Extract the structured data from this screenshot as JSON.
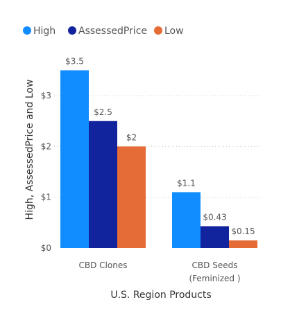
{
  "chart_data": {
    "type": "bar",
    "title": "",
    "xlabel": "U.S. Region Products",
    "ylabel": "High, AssessedPrice and Low",
    "categories": [
      [
        "CBD Clones"
      ],
      [
        "CBD Seeds",
        "(Feminized )"
      ]
    ],
    "series": [
      {
        "name": "High",
        "color": "#118DFF",
        "values": [
          3.5,
          1.1
        ],
        "labels": [
          "$3.5",
          "$1.1"
        ]
      },
      {
        "name": "AssessedPrice",
        "color": "#12239E",
        "values": [
          2.5,
          0.43
        ],
        "labels": [
          "$2.5",
          "$0.43"
        ]
      },
      {
        "name": "Low",
        "color": "#E66C37",
        "values": [
          2,
          0.15
        ],
        "labels": [
          "$2",
          "$0.15"
        ]
      }
    ],
    "ylim": [
      0,
      3.5
    ],
    "yticks": [
      0,
      1,
      2,
      3
    ],
    "ytick_labels": [
      "$0",
      "$1",
      "$2",
      "$3"
    ],
    "grid": true,
    "legend_position": "top-left"
  }
}
